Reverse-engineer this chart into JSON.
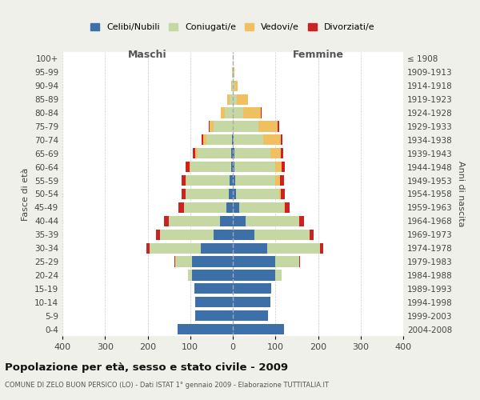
{
  "age_groups": [
    "0-4",
    "5-9",
    "10-14",
    "15-19",
    "20-24",
    "25-29",
    "30-34",
    "35-39",
    "40-44",
    "45-49",
    "50-54",
    "55-59",
    "60-64",
    "65-69",
    "70-74",
    "75-79",
    "80-84",
    "85-89",
    "90-94",
    "95-99",
    "100+"
  ],
  "birth_years": [
    "2004-2008",
    "1999-2003",
    "1994-1998",
    "1989-1993",
    "1984-1988",
    "1979-1983",
    "1974-1978",
    "1969-1973",
    "1964-1968",
    "1959-1963",
    "1954-1958",
    "1949-1953",
    "1944-1948",
    "1939-1943",
    "1934-1938",
    "1929-1933",
    "1924-1928",
    "1919-1923",
    "1914-1918",
    "1909-1913",
    "≤ 1908"
  ],
  "males": {
    "celibi": [
      130,
      88,
      88,
      90,
      95,
      95,
      75,
      45,
      30,
      15,
      10,
      8,
      4,
      3,
      2,
      0,
      0,
      0,
      0,
      0,
      0
    ],
    "coniugati": [
      0,
      0,
      0,
      0,
      10,
      40,
      120,
      125,
      120,
      100,
      100,
      100,
      95,
      80,
      60,
      45,
      18,
      8,
      2,
      1,
      0
    ],
    "vedovi": [
      0,
      0,
      0,
      0,
      0,
      0,
      0,
      0,
      0,
      0,
      1,
      2,
      3,
      5,
      8,
      10,
      10,
      5,
      1,
      0,
      0
    ],
    "divorziati": [
      0,
      0,
      0,
      0,
      0,
      2,
      8,
      10,
      12,
      12,
      10,
      10,
      8,
      5,
      4,
      2,
      1,
      1,
      0,
      0,
      0
    ]
  },
  "females": {
    "nubili": [
      120,
      82,
      88,
      90,
      100,
      100,
      80,
      50,
      30,
      15,
      8,
      5,
      4,
      3,
      2,
      0,
      0,
      0,
      0,
      0,
      0
    ],
    "coniugate": [
      0,
      0,
      0,
      0,
      15,
      55,
      125,
      130,
      125,
      105,
      100,
      95,
      95,
      85,
      70,
      60,
      25,
      10,
      3,
      1,
      0
    ],
    "vedove": [
      0,
      0,
      0,
      0,
      0,
      0,
      0,
      0,
      1,
      3,
      5,
      10,
      15,
      25,
      40,
      45,
      40,
      25,
      8,
      2,
      0
    ],
    "divorziate": [
      0,
      0,
      0,
      0,
      0,
      2,
      8,
      10,
      12,
      10,
      10,
      10,
      8,
      5,
      5,
      3,
      2,
      1,
      0,
      0,
      0
    ]
  },
  "color_celibi": "#3d6fa8",
  "color_coniugati": "#c5d8a4",
  "color_vedovi": "#f0c060",
  "color_divorziati": "#cc2222",
  "title": "Popolazione per età, sesso e stato civile - 2009",
  "subtitle": "COMUNE DI ZELO BUON PERSICO (LO) - Dati ISTAT 1° gennaio 2009 - Elaborazione TUTTITALIA.IT",
  "xlabel_left": "Maschi",
  "xlabel_right": "Femmine",
  "ylabel_left": "Fasce di età",
  "ylabel_right": "Anni di nascita",
  "bg_color": "#f0f0eb",
  "plot_bg": "#ffffff",
  "xlim": 400,
  "xticks": [
    -400,
    -300,
    -200,
    -100,
    0,
    100,
    200,
    300,
    400
  ]
}
